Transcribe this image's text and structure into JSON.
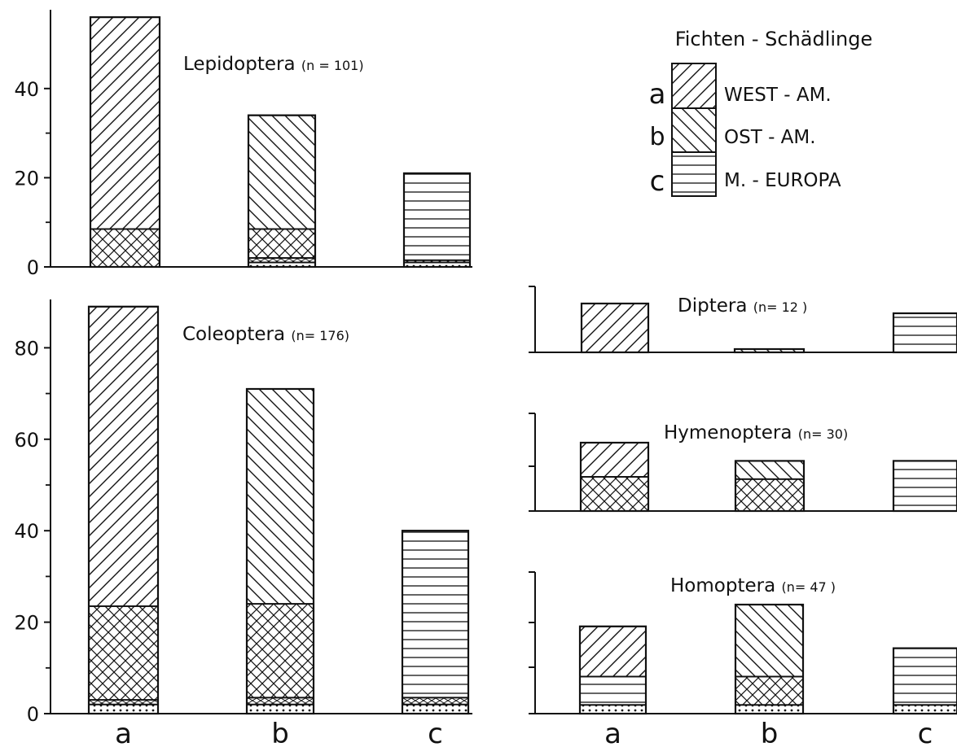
{
  "legend": {
    "title": "Fichten - Schädlinge",
    "items": [
      {
        "letter": "a",
        "label": "WEST - AM.",
        "pattern": "hatch-up"
      },
      {
        "letter": "b",
        "label": "OST - AM.",
        "pattern": "hatch-down"
      },
      {
        "letter": "c",
        "label": "M. - EUROPA",
        "pattern": "horizontal"
      }
    ]
  },
  "chart_data": [
    {
      "type": "bar",
      "title": "Lepidoptera",
      "n_label": "(n = 101)",
      "categories": [
        "a",
        "b",
        "c"
      ],
      "ylim": [
        0,
        56
      ],
      "yticks": [
        0,
        20,
        40
      ],
      "values": [
        56,
        34,
        21
      ],
      "segments": [
        {
          "name": "dotted",
          "values": [
            0,
            1,
            1
          ]
        },
        {
          "name": "diamond",
          "values": [
            0,
            1,
            0.5
          ]
        },
        {
          "name": "crosshatch",
          "values": [
            8.5,
            6.5,
            0
          ]
        },
        {
          "name": "top",
          "values": [
            47.5,
            25.5,
            19.5
          ]
        }
      ]
    },
    {
      "type": "bar",
      "title": "Coleoptera",
      "n_label": "(n= 176)",
      "categories": [
        "a",
        "b",
        "c"
      ],
      "ylim": [
        0,
        92
      ],
      "yticks": [
        0,
        20,
        40,
        60,
        80
      ],
      "values": [
        89,
        71,
        40
      ],
      "segments": [
        {
          "name": "dotted",
          "values": [
            2,
            2,
            2
          ]
        },
        {
          "name": "diamond",
          "values": [
            1,
            1.5,
            1.5
          ]
        },
        {
          "name": "crosshatch",
          "values": [
            20.5,
            20.5,
            0
          ]
        },
        {
          "name": "top",
          "values": [
            65.5,
            47,
            36.5
          ]
        }
      ]
    },
    {
      "type": "bar",
      "title": "Diptera",
      "n_label": "(n= 12 )",
      "categories": [
        "a",
        "b",
        "c"
      ],
      "ylim": [
        0,
        14
      ],
      "values": [
        7.5,
        0.5,
        6
      ],
      "segments": [
        {
          "name": "top",
          "values": [
            7.5,
            0.5,
            6
          ]
        }
      ]
    },
    {
      "type": "bar",
      "title": "Hymenoptera",
      "n_label": "(n= 30)",
      "categories": [
        "a",
        "b",
        "c"
      ],
      "ylim": [
        0,
        22
      ],
      "values": [
        15,
        11,
        11
      ],
      "segments": [
        {
          "name": "crosshatch",
          "values": [
            7.5,
            7,
            0
          ]
        },
        {
          "name": "top",
          "values": [
            7.5,
            4,
            11
          ]
        }
      ]
    },
    {
      "type": "bar",
      "title": "Homoptera",
      "n_label": "(n= 47 )",
      "categories": [
        "a",
        "b",
        "c"
      ],
      "ylim": [
        0,
        32
      ],
      "values": [
        20,
        25,
        15
      ],
      "segments": [
        {
          "name": "dotted",
          "values": [
            2,
            2,
            2
          ]
        },
        {
          "name": "crosshatch",
          "values": [
            0,
            6.5,
            0
          ]
        },
        {
          "name": "horizontal-low",
          "values": [
            6.5,
            0,
            0
          ]
        },
        {
          "name": "top",
          "values": [
            11.5,
            16.5,
            13
          ]
        }
      ]
    }
  ]
}
